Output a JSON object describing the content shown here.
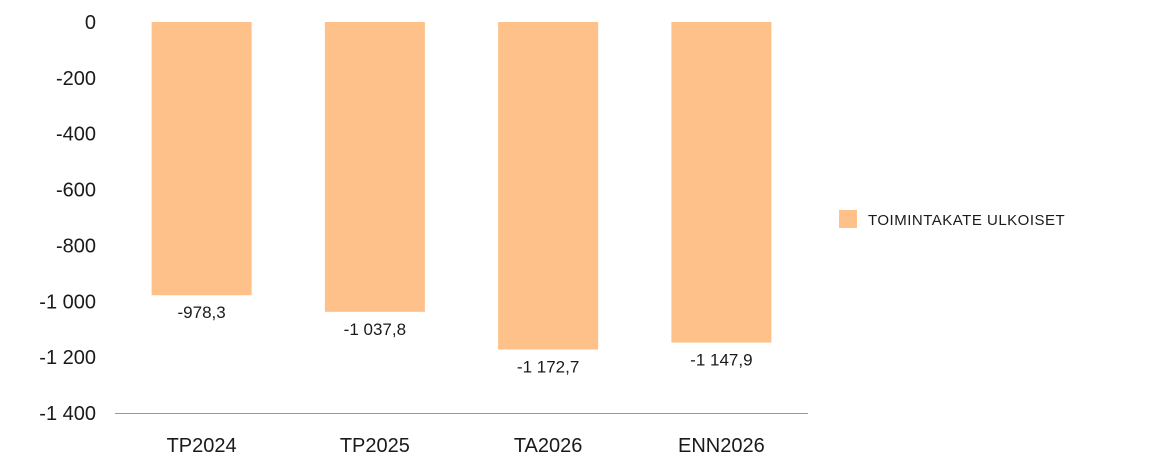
{
  "chart_data": {
    "type": "bar",
    "categories": [
      "TP2024",
      "TP2025",
      "TA2026",
      "ENN2026"
    ],
    "series": [
      {
        "name": "TOIMINTAKATE ULKOISET",
        "values": [
          -978.3,
          -1037.8,
          -1172.7,
          -1147.9
        ],
        "labels": [
          "-978,3",
          "-1 037,8",
          "-1 172,7",
          "-1 147,9"
        ],
        "color": "#FDC189"
      }
    ],
    "ylim": [
      -1400,
      0
    ],
    "yticks": [
      0,
      -200,
      -400,
      -600,
      -800,
      -1000,
      -1200,
      -1400
    ],
    "ytick_labels": [
      "0",
      "-200",
      "-400",
      "-600",
      "-800",
      "-1 000",
      "-1 200",
      "-1 400"
    ],
    "grid": false,
    "legend_position": "right",
    "title": "",
    "xlabel": "",
    "ylabel": ""
  },
  "colors": {
    "bar": "#FDC189",
    "axis": "#999999",
    "text": "#1a1a1a"
  }
}
